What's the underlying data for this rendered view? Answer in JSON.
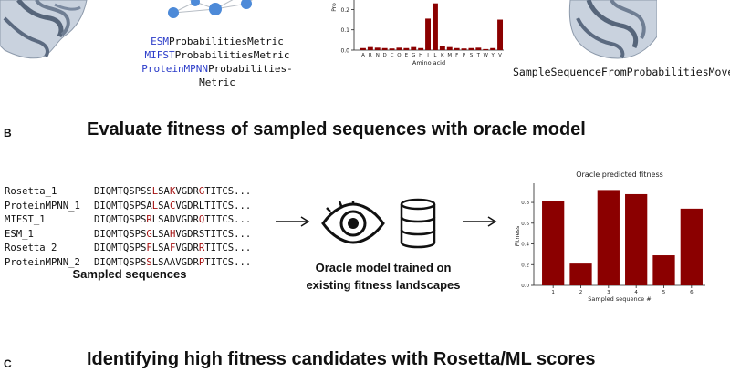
{
  "metrics": [
    {
      "prefix": "ESM",
      "suffix": "ProbabilitiesMetric"
    },
    {
      "prefix": "MIFST",
      "suffix": "ProbabilitiesMetric"
    },
    {
      "prefix": "ProteinMPNN",
      "suffix": "Probabilities-"
    },
    {
      "prefix": "",
      "suffix": "Metric"
    }
  ],
  "mover_label": "SampleSequenceFromProbabilitiesMover",
  "panel_b": {
    "letter": "B",
    "title": "Evaluate fitness of sampled sequences with oracle model",
    "sampled_label": "Sampled sequences",
    "oracle_label_line1": "Oracle model trained on",
    "oracle_label_line2": "existing fitness landscapes",
    "sequences": [
      {
        "name": "Rosetta_1",
        "parts": [
          [
            "DIQMTQSPSS",
            0
          ],
          [
            "L",
            1
          ],
          [
            "SA",
            0
          ],
          [
            "K",
            1
          ],
          [
            "VGDR",
            0
          ],
          [
            "G",
            1
          ],
          [
            "TITCS...",
            0
          ]
        ]
      },
      {
        "name": "ProteinMPNN_1",
        "parts": [
          [
            "DIQMTQSPSA",
            0
          ],
          [
            "L",
            1
          ],
          [
            "SA",
            0
          ],
          [
            "C",
            1
          ],
          [
            "VGDRLTITCS...",
            0
          ]
        ]
      },
      {
        "name": "MIFST_1",
        "parts": [
          [
            "DIQMTQSPS",
            0
          ],
          [
            "R",
            1
          ],
          [
            "LSADVGDR",
            0
          ],
          [
            "Q",
            1
          ],
          [
            "TITCS...",
            0
          ]
        ]
      },
      {
        "name": "ESM_1",
        "parts": [
          [
            "DIQMTQSPS",
            0
          ],
          [
            "G",
            1
          ],
          [
            "LSA",
            0
          ],
          [
            "H",
            1
          ],
          [
            "VGDRSTITCS...",
            0
          ]
        ]
      },
      {
        "name": "Rosetta_2",
        "parts": [
          [
            "DIQMTQSPS",
            0
          ],
          [
            "F",
            1
          ],
          [
            "LSA",
            0
          ],
          [
            "F",
            1
          ],
          [
            "VGDR",
            0
          ],
          [
            "R",
            1
          ],
          [
            "TITCS...",
            0
          ]
        ]
      },
      {
        "name": "ProteinMPNN_2",
        "parts": [
          [
            "DIQMTQSPS",
            0
          ],
          [
            "S",
            1
          ],
          [
            "LSAAVGDR",
            0
          ],
          [
            "P",
            1
          ],
          [
            "TITCS...",
            0
          ]
        ]
      }
    ]
  },
  "panel_c": {
    "letter": "C",
    "title": "Identifying high fitness candidates with Rosetta/ML scores"
  },
  "chart_data": [
    {
      "type": "bar",
      "title": "",
      "xlabel": "Amino acid",
      "ylabel": "Pro",
      "categories": [
        "A",
        "R",
        "N",
        "D",
        "C",
        "Q",
        "E",
        "G",
        "H",
        "I",
        "L",
        "K",
        "M",
        "F",
        "P",
        "S",
        "T",
        "W",
        "Y",
        "V"
      ],
      "values": [
        0.01,
        0.015,
        0.012,
        0.01,
        0.008,
        0.012,
        0.01,
        0.015,
        0.01,
        0.155,
        0.23,
        0.018,
        0.015,
        0.01,
        0.008,
        0.01,
        0.012,
        0.005,
        0.01,
        0.15
      ],
      "yticks": [
        "0.0",
        "0.1",
        "0.2"
      ],
      "ylim": [
        0,
        0.26
      ],
      "color": "#8b0000"
    },
    {
      "type": "bar",
      "title": "Oracle predicted fitness",
      "xlabel": "Sampled sequence #",
      "ylabel": "Fitness",
      "categories": [
        "1",
        "2",
        "3",
        "4",
        "5",
        "6"
      ],
      "values": [
        0.81,
        0.21,
        0.92,
        0.88,
        0.29,
        0.74
      ],
      "yticks": [
        "0.0",
        "0.2",
        "0.4",
        "0.6",
        "0.8"
      ],
      "ylim": [
        0,
        0.95
      ],
      "color": "#8b0000"
    }
  ],
  "colors": {
    "bar": "#8b0000",
    "mutation": "#a30f0f",
    "metric_prefix": "#2b3cc9"
  },
  "icons": [
    "protein-structure-image",
    "network-graph-icon",
    "eye-icon",
    "database-icon",
    "arrow-right-icon"
  ]
}
